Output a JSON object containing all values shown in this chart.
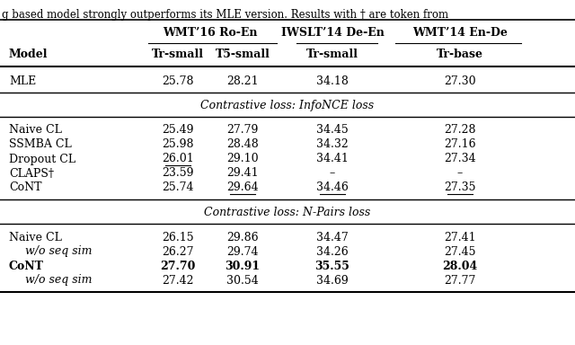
{
  "title_text": "g based model strongly outperforms its MLE version. Results with † are token from",
  "col_headers_top": [
    "WMT’16 Ro-En",
    "IWSLT’14 De-En",
    "WMT’14 En-De"
  ],
  "col_headers_sub": [
    "Model",
    "Tr-small",
    "T5-small",
    "Tr-small",
    "Tr-base"
  ],
  "mle_row": [
    "MLE",
    "25.78",
    "28.21",
    "34.18",
    "27.30"
  ],
  "info_header": "Contrastive loss: InfoNCE loss",
  "info_rows": [
    {
      "model": "Naive CL",
      "vals": [
        "25.49",
        "27.79",
        "34.45",
        "27.28"
      ],
      "bold": false,
      "italic": false,
      "ul": []
    },
    {
      "model": "SSMBA CL",
      "vals": [
        "25.98",
        "28.48",
        "34.32",
        "27.16"
      ],
      "bold": false,
      "italic": false,
      "ul": []
    },
    {
      "model": "Dropout CL",
      "vals": [
        "26.01",
        "29.10",
        "34.41",
        "27.34"
      ],
      "bold": false,
      "italic": false,
      "ul": [
        0
      ]
    },
    {
      "model": "CLAPS†",
      "vals": [
        "23.59",
        "29.41",
        "–",
        "–"
      ],
      "bold": false,
      "italic": false,
      "ul": []
    },
    {
      "model": "CoNT",
      "vals": [
        "25.74",
        "29.64",
        "34.46",
        "27.35"
      ],
      "bold": false,
      "italic": false,
      "ul": [
        1,
        2,
        3
      ]
    }
  ],
  "npairs_header": "Contrastive loss: N-Pairs loss",
  "npairs_rows": [
    {
      "model": "Naive CL",
      "vals": [
        "26.15",
        "29.86",
        "34.47",
        "27.41"
      ],
      "bold": false,
      "italic": false,
      "ul": []
    },
    {
      "model": "w/o seq sim",
      "vals": [
        "26.27",
        "29.74",
        "34.26",
        "27.45"
      ],
      "bold": false,
      "italic": true,
      "ul": []
    },
    {
      "model": "CoNT",
      "vals": [
        "27.70",
        "30.91",
        "35.55",
        "28.04"
      ],
      "bold": true,
      "italic": false,
      "ul": []
    },
    {
      "model": "w/o seq sim",
      "vals": [
        "27.42",
        "30.54",
        "34.69",
        "27.77"
      ],
      "bold": false,
      "italic": true,
      "ul": []
    }
  ],
  "bg_color": "white",
  "line_color": "black",
  "fs_title": 8.5,
  "fs_main": 9.0
}
